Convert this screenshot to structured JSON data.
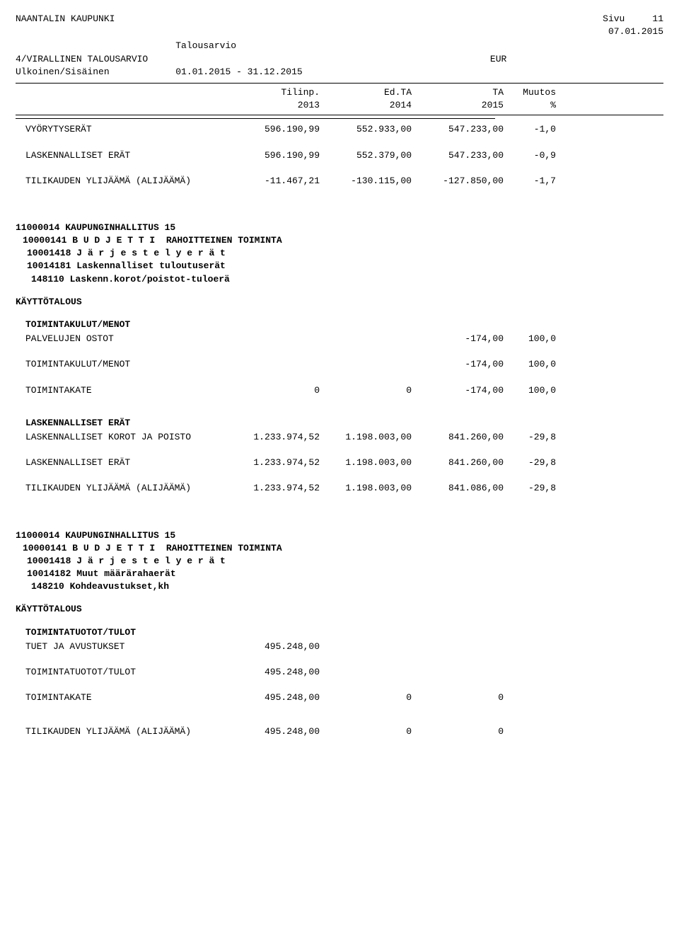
{
  "header": {
    "org": "NAANTALIN KAUPUNKI",
    "page_label": "Sivu",
    "page_num": "11",
    "date": "07.01.2015",
    "doc_title": "Talousarvio",
    "subtitle1": "4/VIRALLINEN TALOUSARVIO",
    "subtitle2": "Ulkoinen/Sisäinen",
    "currency": "EUR",
    "period": "01.01.2015 - 31.12.2015"
  },
  "columns": {
    "c1a": "Tilinp.",
    "c1b": "2013",
    "c2a": "Ed.TA",
    "c2b": "2014",
    "c3a": "TA",
    "c3b": "2015",
    "c4a": "Muutos",
    "c4b": "%"
  },
  "top_rows": [
    {
      "label": "VYÖRYTYSERÄT",
      "c1": "596.190,99",
      "c2": "552.933,00",
      "c3": "547.233,00",
      "c4": "-1,0"
    },
    {
      "label": "LASKENNALLISET ERÄT",
      "c1": "596.190,99",
      "c2": "552.379,00",
      "c3": "547.233,00",
      "c4": "-0,9"
    },
    {
      "label": "TILIKAUDEN YLIJÄÄMÄ (ALIJÄÄMÄ)",
      "c1": "-11.467,21",
      "c2": "-130.115,00",
      "c3": "-127.850,00",
      "c4": "-1,7"
    }
  ],
  "section1": {
    "l1": "11000014 KAUPUNGINHALLITUS 15",
    "l2": "10000141 B U D J E T T I  RAHOITTEINEN TOIMINTA",
    "l3": "10001418 J ä r j e s t e l y e r ä t",
    "l4": "10014181 Laskennalliset tuloutuserät",
    "l5": "148110 Laskenn.korot/poistot-tuloerä",
    "kt": "KÄYTTÖTALOUS"
  },
  "s1_group1_title": "TOIMINTAKULUT/MENOT",
  "s1_rows1": [
    {
      "label": "PALVELUJEN OSTOT",
      "c1": "",
      "c2": "",
      "c3": "-174,00",
      "c4": "100,0"
    }
  ],
  "s1_rows2": [
    {
      "label": "TOIMINTAKULUT/MENOT",
      "c1": "",
      "c2": "",
      "c3": "-174,00",
      "c4": "100,0"
    },
    {
      "label": "TOIMINTAKATE",
      "c1": "0",
      "c2": "0",
      "c3": "-174,00",
      "c4": "100,0"
    }
  ],
  "s1_group2_title": "LASKENNALLISET ERÄT",
  "s1_rows3": [
    {
      "label": "LASKENNALLISET KOROT JA POISTO",
      "c1": "1.233.974,52",
      "c2": "1.198.003,00",
      "c3": "841.260,00",
      "c4": "-29,8"
    }
  ],
  "s1_rows4": [
    {
      "label": "LASKENNALLISET ERÄT",
      "c1": "1.233.974,52",
      "c2": "1.198.003,00",
      "c3": "841.260,00",
      "c4": "-29,8"
    },
    {
      "label": "TILIKAUDEN YLIJÄÄMÄ (ALIJÄÄMÄ)",
      "c1": "1.233.974,52",
      "c2": "1.198.003,00",
      "c3": "841.086,00",
      "c4": "-29,8"
    }
  ],
  "section2": {
    "l1": "11000014 KAUPUNGINHALLITUS 15",
    "l2": "10000141 B U D J E T T I  RAHOITTEINEN TOIMINTA",
    "l3": "10001418 J ä r j e s t e l y e r ä t",
    "l4": "10014182 Muut määrärahaerät",
    "l5": "148210 Kohdeavustukset,kh",
    "kt": "KÄYTTÖTALOUS"
  },
  "s2_group1_title": "TOIMINTATUOTOT/TULOT",
  "s2_rows1": [
    {
      "label": "TUET JA AVUSTUKSET",
      "c1": "495.248,00",
      "c2": "",
      "c3": "",
      "c4": ""
    }
  ],
  "s2_rows2": [
    {
      "label": "TOIMINTATUOTOT/TULOT",
      "c1": "495.248,00",
      "c2": "",
      "c3": "",
      "c4": ""
    },
    {
      "label": "TOIMINTAKATE",
      "c1": "495.248,00",
      "c2": "0",
      "c3": "0",
      "c4": ""
    }
  ],
  "s2_rows3": [
    {
      "label": "TILIKAUDEN YLIJÄÄMÄ (ALIJÄÄMÄ)",
      "c1": "495.248,00",
      "c2": "0",
      "c3": "0",
      "c4": ""
    }
  ]
}
